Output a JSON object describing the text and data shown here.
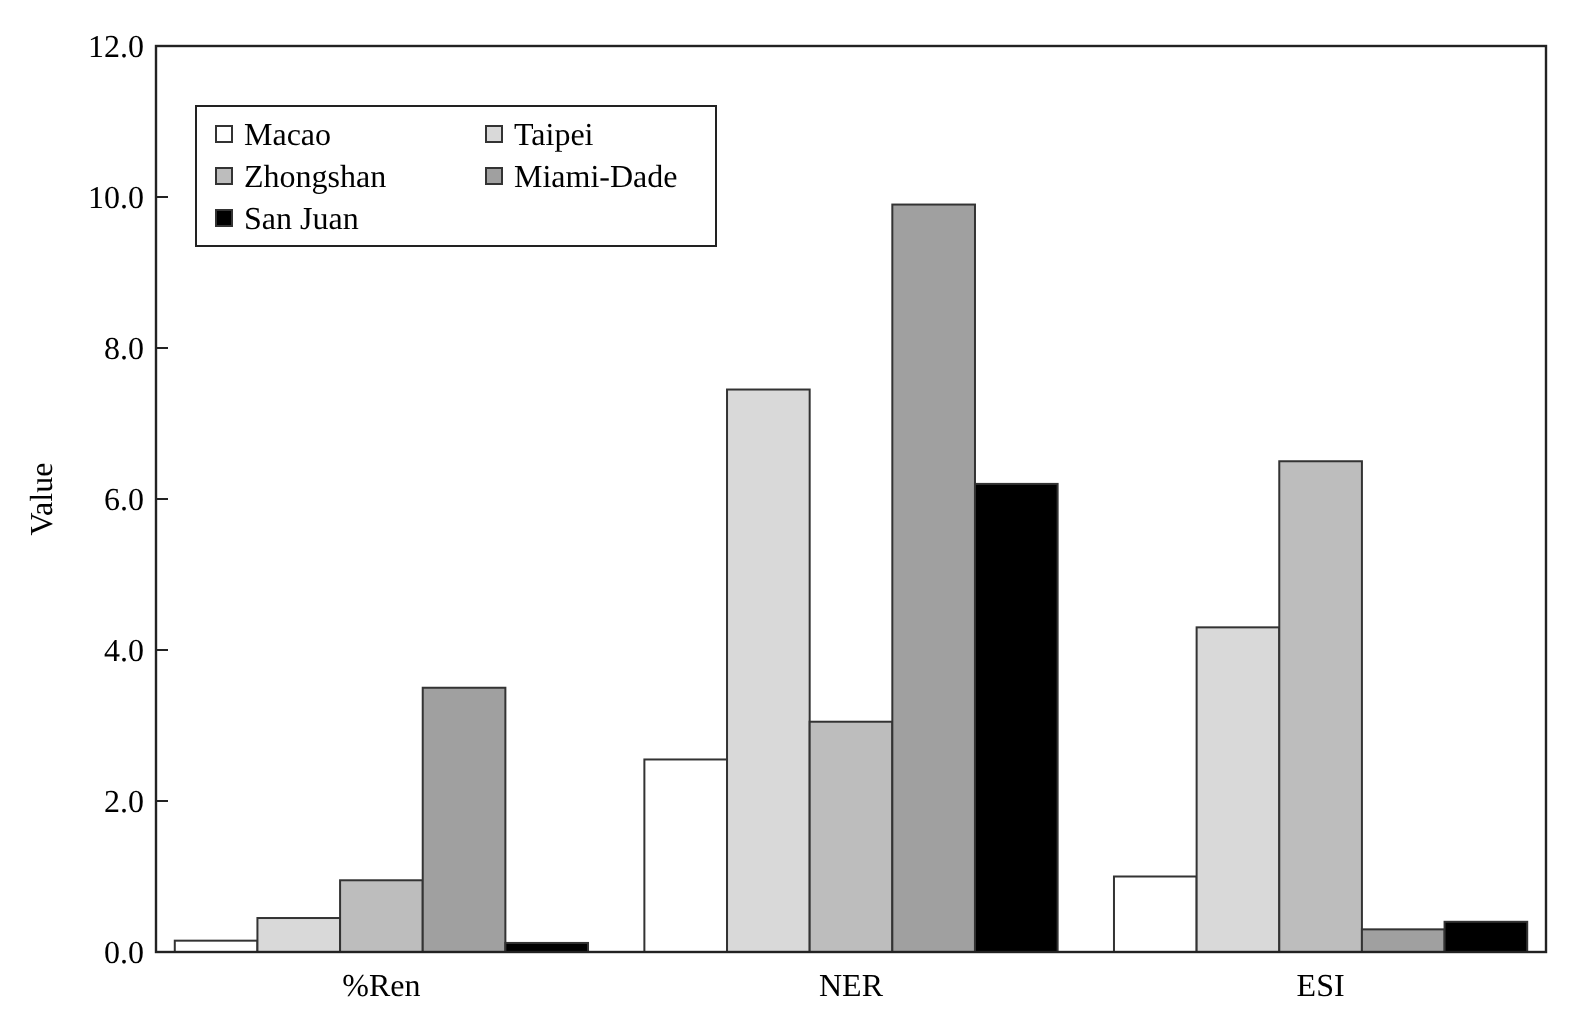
{
  "chart_data": {
    "type": "bar",
    "ylabel": "Value",
    "categories": [
      "%Ren",
      "NER",
      "ESI"
    ],
    "series": [
      {
        "name": "Macao",
        "color": "#ffffff",
        "values": [
          0.15,
          2.55,
          1.0
        ]
      },
      {
        "name": "Taipei",
        "color": "#d9d9d9",
        "values": [
          0.45,
          7.45,
          4.3
        ]
      },
      {
        "name": "Zhongshan",
        "color": "#bdbdbd",
        "values": [
          0.95,
          3.05,
          6.5
        ]
      },
      {
        "name": "Miami-Dade",
        "color": "#a0a0a0",
        "values": [
          3.5,
          9.9,
          0.3
        ]
      },
      {
        "name": "San Juan",
        "color": "#000000",
        "values": [
          0.12,
          6.2,
          0.4
        ]
      }
    ],
    "ylim": [
      0,
      12
    ],
    "yticks": [
      {
        "value": 0,
        "label": "0.0"
      },
      {
        "value": 2,
        "label": "2.0"
      },
      {
        "value": 4,
        "label": "4.0"
      },
      {
        "value": 6,
        "label": "6.0"
      },
      {
        "value": 8,
        "label": "8.0"
      },
      {
        "value": 10,
        "label": "10.0"
      },
      {
        "value": 12,
        "label": "12.0"
      }
    ],
    "legend": "top left",
    "grid": false
  }
}
